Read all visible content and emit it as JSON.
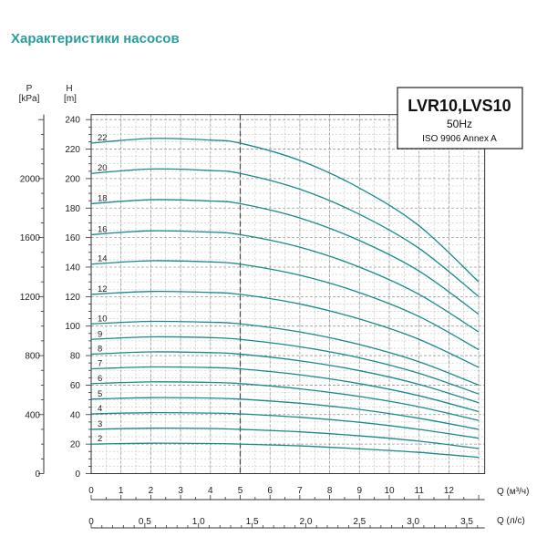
{
  "title": "Характеристики насосов",
  "chart_data": {
    "type": "line",
    "model": "LVR10,LVS10",
    "frequency": "50Hz",
    "standard": "ISO 9906 Annex A",
    "y_head": {
      "label": "H",
      "unit": "[m]",
      "range": [
        0,
        240
      ],
      "ticks": [
        0,
        20,
        40,
        60,
        80,
        100,
        120,
        140,
        160,
        180,
        200,
        220,
        240
      ]
    },
    "y_pressure": {
      "label": "P",
      "unit": "[kPa]",
      "range": [
        0,
        2400
      ],
      "ticks": [
        0,
        400,
        800,
        1200,
        1600,
        2000
      ]
    },
    "x_flow_m3h": {
      "label": "Q (м³/ч)",
      "range": [
        0,
        13
      ],
      "ticks": [
        0,
        1,
        2,
        3,
        4,
        5,
        6,
        7,
        8,
        9,
        10,
        11,
        12
      ]
    },
    "x_flow_ls": {
      "label": "Q (л/с)",
      "range": [
        0,
        3.611
      ],
      "ticks": [
        "0",
        "0.5",
        "1.0",
        "1.5",
        "2.0",
        "2.5",
        "3.0",
        "3.5"
      ]
    },
    "grid": true,
    "color": "#1a8a8a",
    "series": [
      {
        "name": "2",
        "x": [
          0,
          2,
          4,
          5,
          7,
          9,
          11,
          13
        ],
        "y": [
          20,
          20.6,
          20.4,
          20,
          18.8,
          16.8,
          14.4,
          11
        ]
      },
      {
        "name": "3",
        "x": [
          0,
          2,
          4,
          5,
          7,
          9,
          11,
          13
        ],
        "y": [
          30,
          30.8,
          30.6,
          30,
          28.3,
          25.6,
          22,
          17
        ]
      },
      {
        "name": "4",
        "x": [
          0,
          2,
          4,
          5,
          7,
          9,
          11,
          13
        ],
        "y": [
          40.5,
          41.3,
          41,
          40.5,
          38.2,
          34.8,
          30,
          24
        ]
      },
      {
        "name": "5",
        "x": [
          0,
          2,
          4,
          5,
          7,
          9,
          11,
          13
        ],
        "y": [
          50.5,
          51.5,
          51.2,
          50.5,
          47.7,
          43.5,
          37.5,
          30
        ]
      },
      {
        "name": "6",
        "x": [
          0,
          2,
          4,
          5,
          7,
          9,
          11,
          13
        ],
        "y": [
          61,
          62.2,
          61.8,
          61,
          57.5,
          52.3,
          45.3,
          36
        ]
      },
      {
        "name": "7",
        "x": [
          0,
          2,
          4,
          5,
          7,
          9,
          11,
          13
        ],
        "y": [
          71,
          72.3,
          71.9,
          71,
          67,
          61,
          52.8,
          42
        ]
      },
      {
        "name": "8",
        "x": [
          0,
          2,
          4,
          5,
          7,
          9,
          11,
          13
        ],
        "y": [
          81,
          82.5,
          82,
          81,
          76.5,
          69.8,
          60.5,
          48
        ]
      },
      {
        "name": "9",
        "x": [
          0,
          2,
          4,
          5,
          7,
          9,
          11,
          13
        ],
        "y": [
          91,
          92.7,
          92.2,
          91,
          86,
          78.5,
          68,
          54
        ]
      },
      {
        "name": "10",
        "x": [
          0,
          2,
          4,
          5,
          7,
          9,
          11,
          13
        ],
        "y": [
          101.5,
          103.2,
          102.6,
          101.5,
          96,
          87.5,
          75.8,
          60
        ]
      },
      {
        "name": "12",
        "x": [
          0,
          2,
          4,
          5,
          7,
          9,
          11,
          13
        ],
        "y": [
          121.5,
          123.5,
          122.8,
          121.5,
          115,
          104.8,
          91,
          72
        ]
      },
      {
        "name": "14",
        "x": [
          0,
          2,
          4,
          5,
          7,
          9,
          11,
          13
        ],
        "y": [
          142,
          144.3,
          143.5,
          142,
          134.5,
          122.7,
          106.5,
          84
        ]
      },
      {
        "name": "16",
        "x": [
          0,
          2,
          4,
          5,
          7,
          9,
          11,
          13
        ],
        "y": [
          162,
          164.6,
          163.7,
          162,
          153.5,
          140,
          121.5,
          96
        ]
      },
      {
        "name": "18",
        "x": [
          0,
          2,
          4,
          5,
          7,
          9,
          11,
          13
        ],
        "y": [
          183,
          185.7,
          184.8,
          183,
          173.3,
          158,
          137.3,
          108
        ]
      },
      {
        "name": "20",
        "x": [
          0,
          2,
          4,
          5,
          7,
          9,
          11,
          13
        ],
        "y": [
          203.5,
          206.5,
          205.5,
          203.5,
          192.8,
          175.8,
          152.7,
          120
        ]
      },
      {
        "name": "22",
        "x": [
          0,
          2,
          4,
          5,
          7,
          9,
          11,
          13
        ],
        "y": [
          224,
          227.2,
          226.1,
          224,
          212.3,
          193.6,
          168,
          130
        ]
      }
    ]
  }
}
